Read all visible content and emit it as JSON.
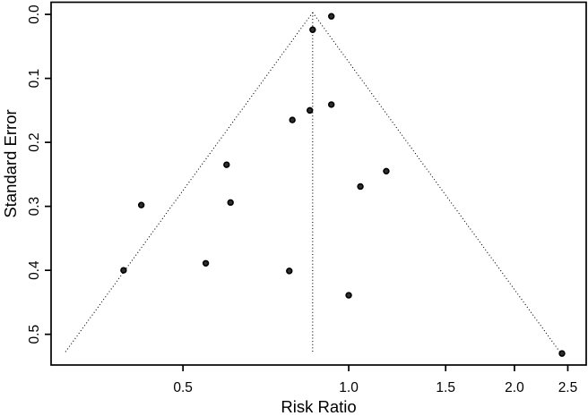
{
  "chart_data": {
    "type": "scatter",
    "subtype": "funnel-plot",
    "title": "",
    "xlabel": "Risk Ratio",
    "ylabel": "Standard Error",
    "x_scale": "log",
    "y_inverted": true,
    "x_range": [
      0.288,
      2.7
    ],
    "y_range": [
      -0.019,
      0.548
    ],
    "x_ticks": [
      0.5,
      1.0,
      1.5,
      2.0,
      2.5
    ],
    "x_tick_labels": [
      "0.5",
      "1.0",
      "1.5",
      "2.0",
      "2.5"
    ],
    "y_ticks": [
      0.0,
      0.1,
      0.2,
      0.3,
      0.4,
      0.5
    ],
    "y_tick_labels": [
      "0.0",
      "0.1",
      "0.2",
      "0.3",
      "0.4",
      "0.5"
    ],
    "grid": false,
    "legend": null,
    "points": [
      {
        "rr": 0.93,
        "se": 0.003
      },
      {
        "rr": 0.86,
        "se": 0.024
      },
      {
        "rr": 0.93,
        "se": 0.141
      },
      {
        "rr": 0.85,
        "se": 0.15
      },
      {
        "rr": 0.79,
        "se": 0.165
      },
      {
        "rr": 0.6,
        "se": 0.235
      },
      {
        "rr": 1.17,
        "se": 0.245
      },
      {
        "rr": 1.05,
        "se": 0.269
      },
      {
        "rr": 0.61,
        "se": 0.294
      },
      {
        "rr": 0.42,
        "se": 0.298
      },
      {
        "rr": 0.55,
        "se": 0.389
      },
      {
        "rr": 0.39,
        "se": 0.4
      },
      {
        "rr": 0.78,
        "se": 0.401
      },
      {
        "rr": 1.0,
        "se": 0.439
      },
      {
        "rr": 2.44,
        "se": 0.53
      }
    ],
    "funnel": {
      "center_rr": 0.86,
      "se_apex": -0.003,
      "se_max": 0.53,
      "z": 1.96,
      "line_style": "dotted"
    },
    "colors": {
      "background": "#ffffff",
      "axis": "#000000",
      "text": "#000000",
      "funnel_line": "#000000",
      "point_fill": "#2e2e2e",
      "point_stroke": "#000000"
    }
  }
}
